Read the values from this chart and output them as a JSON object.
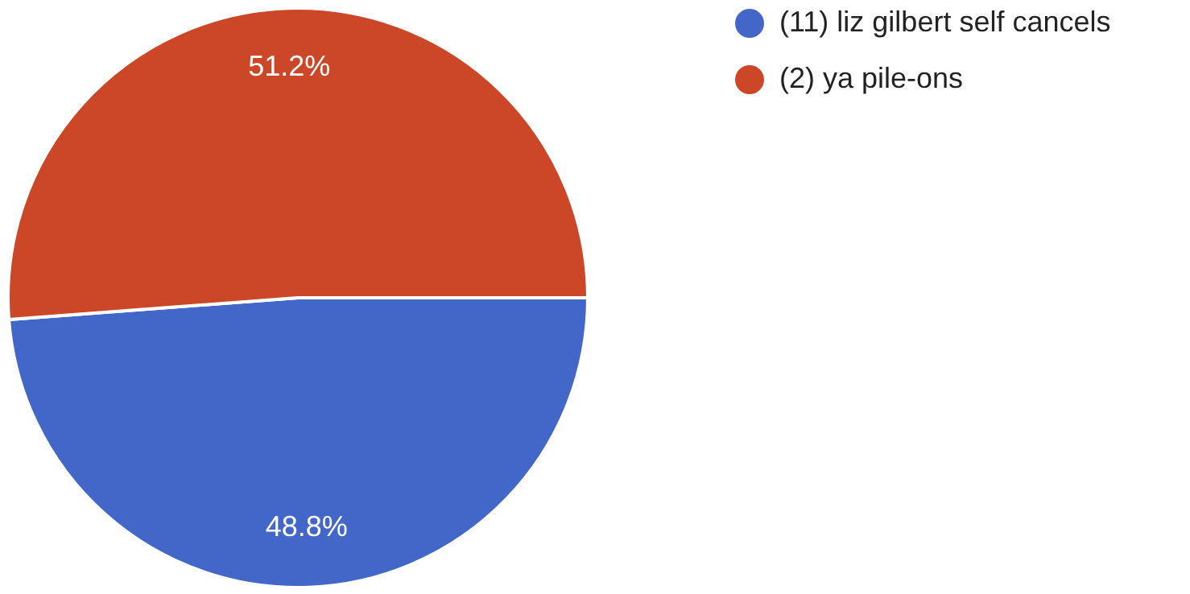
{
  "chart_data": {
    "type": "pie",
    "categories": [
      "(11) liz gilbert self cancels",
      "(2) ya pile-ons"
    ],
    "values": [
      48.8,
      51.2
    ],
    "colors": [
      "#4267c9",
      "#cc4727"
    ],
    "value_labels": [
      "48.8%",
      "51.2%"
    ],
    "legend": "top right"
  }
}
